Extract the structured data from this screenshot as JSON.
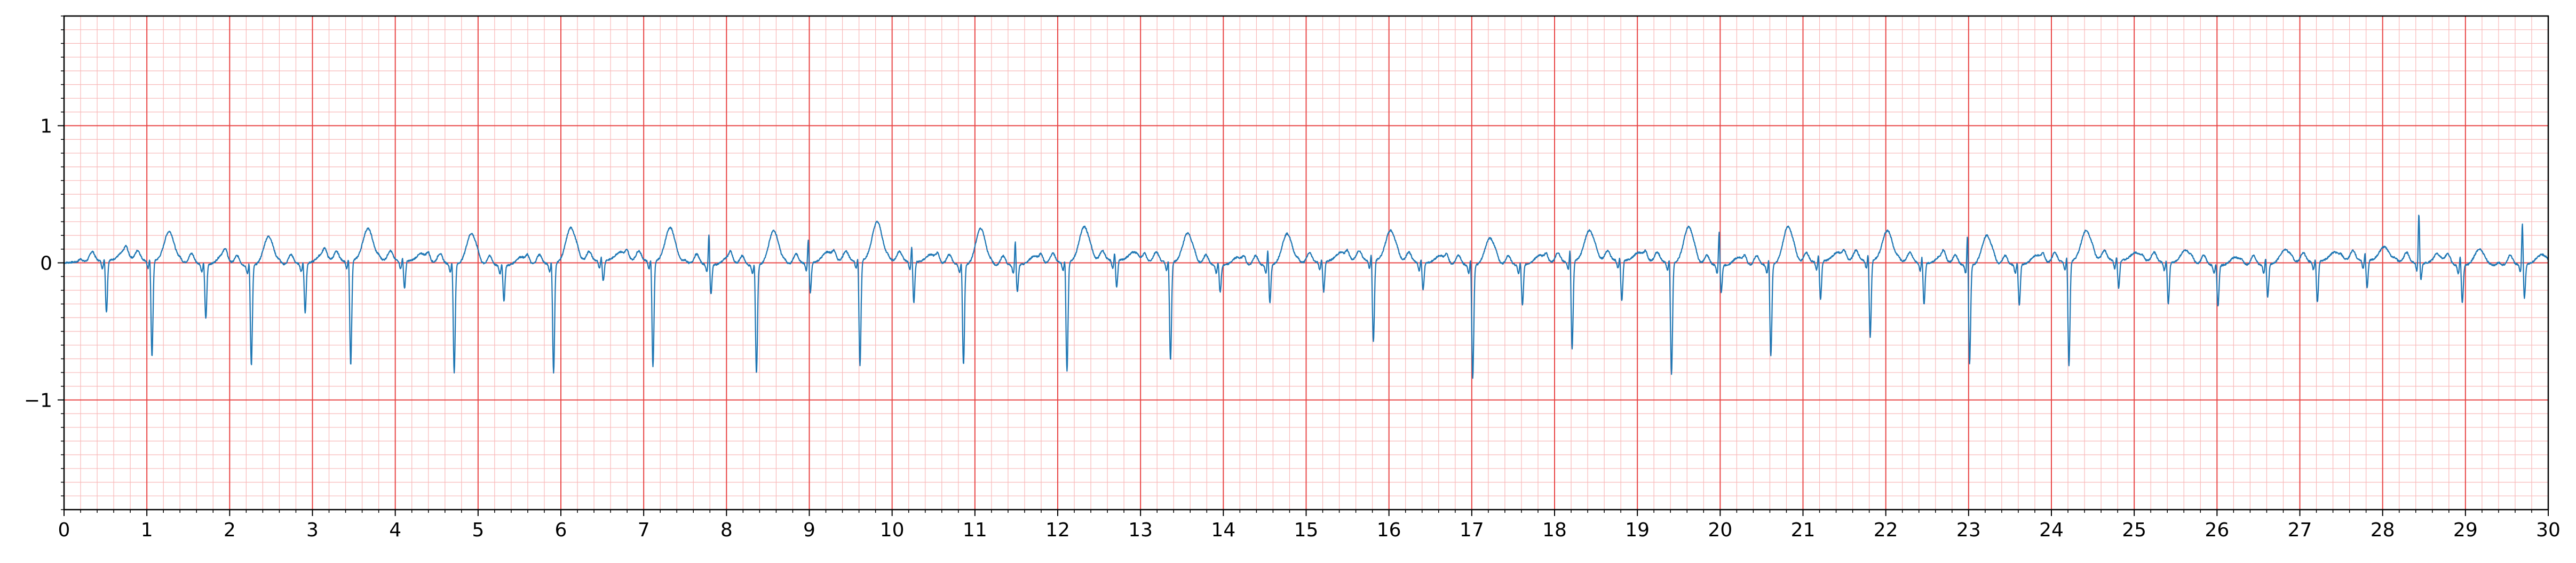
{
  "chart_data": {
    "type": "line",
    "title": "",
    "xlabel": "",
    "ylabel": "",
    "xlim": [
      0,
      30
    ],
    "ylim": [
      -1.8,
      1.8
    ],
    "x_ticks": [
      0,
      1,
      2,
      3,
      4,
      5,
      6,
      7,
      8,
      9,
      10,
      11,
      12,
      13,
      14,
      15,
      16,
      17,
      18,
      19,
      20,
      21,
      22,
      23,
      24,
      25,
      26,
      27,
      28,
      29,
      30
    ],
    "x_tick_labels": [
      "0",
      "1",
      "2",
      "3",
      "4",
      "5",
      "6",
      "7",
      "8",
      "9",
      "10",
      "11",
      "12",
      "13",
      "14",
      "15",
      "16",
      "17",
      "18",
      "19",
      "20",
      "21",
      "22",
      "23",
      "24",
      "25",
      "26",
      "27",
      "28",
      "29",
      "30"
    ],
    "y_ticks": [
      -1,
      0,
      1
    ],
    "y_tick_labels": [
      "−1",
      "0",
      "1"
    ],
    "grid": {
      "major": true,
      "minor": true,
      "major_x_step": 1,
      "minor_x_step": 0.2,
      "major_y_step": 1,
      "minor_y_step": 0.1,
      "major_color": "#e84545",
      "minor_color": "#f8b8b8"
    },
    "background": "#ffffff",
    "series": [
      {
        "color": "#1f77b4",
        "beats": [
          {
            "t": 0.5,
            "r": 0.06,
            "s": -0.38,
            "tw": 0.06
          },
          {
            "t": 1.05,
            "r": 0.08,
            "s": -0.7,
            "tw": 0.22
          },
          {
            "t": 1.7,
            "r": 0.05,
            "s": -0.4,
            "tw": 0.08
          },
          {
            "t": 2.25,
            "r": 0.08,
            "s": -0.73,
            "tw": 0.21
          },
          {
            "t": 2.9,
            "r": 0.05,
            "s": -0.36,
            "tw": 0.06
          },
          {
            "t": 3.45,
            "r": 0.08,
            "s": -0.76,
            "tw": 0.23
          },
          {
            "t": 4.1,
            "r": 0.05,
            "s": -0.2,
            "tw": 0.06
          },
          {
            "t": 4.7,
            "r": 0.08,
            "s": -0.79,
            "tw": 0.23
          },
          {
            "t": 5.3,
            "r": 0.05,
            "s": -0.26,
            "tw": 0.06
          },
          {
            "t": 5.9,
            "r": 0.08,
            "s": -0.8,
            "tw": 0.25
          },
          {
            "t": 6.5,
            "r": 0.05,
            "s": -0.15,
            "tw": 0.06
          },
          {
            "t": 7.1,
            "r": 0.08,
            "s": -0.77,
            "tw": 0.25
          },
          {
            "t": 7.8,
            "r": 0.25,
            "s": -0.22,
            "tw": 0.06
          },
          {
            "t": 8.35,
            "r": 0.08,
            "s": -0.79,
            "tw": 0.25
          },
          {
            "t": 9.0,
            "r": 0.2,
            "s": -0.22,
            "tw": 0.07
          },
          {
            "t": 9.6,
            "r": 0.08,
            "s": -0.77,
            "tw": 0.28
          },
          {
            "t": 10.25,
            "r": 0.15,
            "s": -0.3,
            "tw": 0.06
          },
          {
            "t": 10.85,
            "r": 0.08,
            "s": -0.73,
            "tw": 0.27
          },
          {
            "t": 11.5,
            "r": 0.2,
            "s": -0.2,
            "tw": 0.06
          },
          {
            "t": 12.1,
            "r": 0.08,
            "s": -0.8,
            "tw": 0.25
          },
          {
            "t": 12.7,
            "r": 0.08,
            "s": -0.2,
            "tw": 0.06
          },
          {
            "t": 13.35,
            "r": 0.08,
            "s": -0.72,
            "tw": 0.22
          },
          {
            "t": 13.95,
            "r": 0.05,
            "s": -0.2,
            "tw": 0.06
          },
          {
            "t": 14.55,
            "r": 0.15,
            "s": -0.28,
            "tw": 0.22
          },
          {
            "t": 15.2,
            "r": 0.05,
            "s": -0.22,
            "tw": 0.06
          },
          {
            "t": 15.8,
            "r": 0.1,
            "s": -0.6,
            "tw": 0.22
          },
          {
            "t": 16.4,
            "r": 0.05,
            "s": -0.2,
            "tw": 0.06
          },
          {
            "t": 17.0,
            "r": 0.12,
            "s": -0.82,
            "tw": 0.2
          },
          {
            "t": 17.6,
            "r": 0.05,
            "s": -0.3,
            "tw": 0.06
          },
          {
            "t": 18.2,
            "r": 0.15,
            "s": -0.64,
            "tw": 0.22
          },
          {
            "t": 18.8,
            "r": 0.05,
            "s": -0.3,
            "tw": 0.06
          },
          {
            "t": 19.4,
            "r": 0.1,
            "s": -0.82,
            "tw": 0.27
          },
          {
            "t": 20.0,
            "r": 0.28,
            "s": -0.2,
            "tw": 0.06
          },
          {
            "t": 20.6,
            "r": 0.1,
            "s": -0.67,
            "tw": 0.27
          },
          {
            "t": 21.2,
            "r": 0.08,
            "s": -0.28,
            "tw": 0.06
          },
          {
            "t": 21.8,
            "r": 0.1,
            "s": -0.56,
            "tw": 0.22
          },
          {
            "t": 22.45,
            "r": 0.08,
            "s": -0.3,
            "tw": 0.06
          },
          {
            "t": 23.0,
            "r": 0.3,
            "s": -0.72,
            "tw": 0.22
          },
          {
            "t": 23.6,
            "r": 0.05,
            "s": -0.3,
            "tw": 0.06
          },
          {
            "t": 24.2,
            "r": 0.1,
            "s": -0.76,
            "tw": 0.22
          },
          {
            "t": 24.8,
            "r": 0.05,
            "s": -0.2,
            "tw": 0.06
          },
          {
            "t": 25.4,
            "r": 0.05,
            "s": -0.3,
            "tw": 0.1
          },
          {
            "t": 26.0,
            "r": 0.05,
            "s": -0.3,
            "tw": 0.06
          },
          {
            "t": 26.6,
            "r": 0.08,
            "s": -0.24,
            "tw": 0.1
          },
          {
            "t": 27.2,
            "r": 0.05,
            "s": -0.3,
            "tw": 0.06
          },
          {
            "t": 27.8,
            "r": 0.08,
            "s": -0.2,
            "tw": 0.1
          },
          {
            "t": 28.45,
            "r": 0.38,
            "s": -0.12,
            "tw": 0.06
          },
          {
            "t": 28.95,
            "r": 0.1,
            "s": -0.27,
            "tw": 0.12
          },
          {
            "t": 29.7,
            "r": 0.33,
            "s": -0.25,
            "tw": 0.06
          }
        ]
      }
    ]
  }
}
